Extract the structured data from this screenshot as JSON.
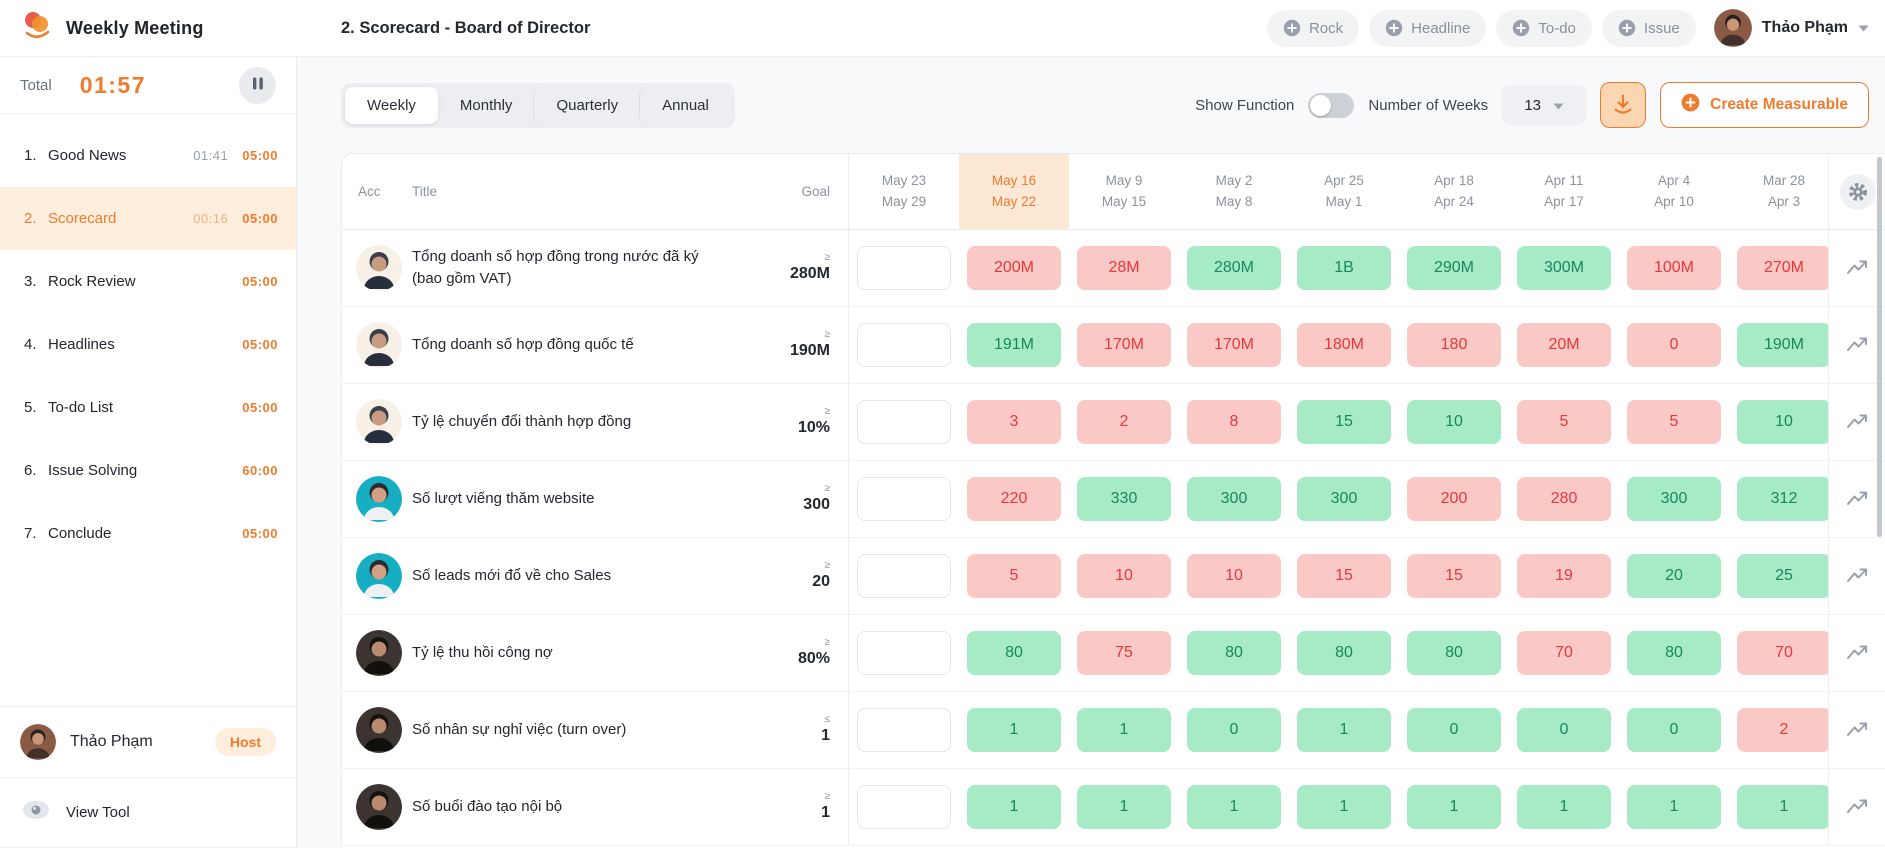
{
  "app": {
    "title": "Weekly Meeting"
  },
  "header": {
    "page_title": "2. Scorecard - Board of Director",
    "quick_add": [
      {
        "label": "Rock"
      },
      {
        "label": "Headline"
      },
      {
        "label": "To-do"
      },
      {
        "label": "Issue"
      }
    ],
    "user": {
      "name": "Thảo Phạm"
    }
  },
  "sidebar": {
    "total_label": "Total",
    "total_time": "01:57",
    "items": [
      {
        "num": "1.",
        "label": "Good News",
        "elapsed": "01:41",
        "time": "05:00",
        "active": false
      },
      {
        "num": "2.",
        "label": "Scorecard",
        "elapsed": "00:16",
        "time": "05:00",
        "active": true
      },
      {
        "num": "3.",
        "label": "Rock Review",
        "elapsed": "",
        "time": "05:00",
        "active": false
      },
      {
        "num": "4.",
        "label": "Headlines",
        "elapsed": "",
        "time": "05:00",
        "active": false
      },
      {
        "num": "5.",
        "label": "To-do List",
        "elapsed": "",
        "time": "05:00",
        "active": false
      },
      {
        "num": "6.",
        "label": "Issue Solving",
        "elapsed": "",
        "time": "60:00",
        "active": false
      },
      {
        "num": "7.",
        "label": "Conclude",
        "elapsed": "",
        "time": "05:00",
        "active": false
      }
    ],
    "host": {
      "name": "Thảo Phạm",
      "badge": "Host"
    },
    "view_tool": "View Tool"
  },
  "toolbar": {
    "tabs": [
      {
        "label": "Weekly",
        "active": true
      },
      {
        "label": "Monthly",
        "active": false
      },
      {
        "label": "Quarterly",
        "active": false
      },
      {
        "label": "Annual",
        "active": false
      }
    ],
    "show_function_label": "Show Function",
    "show_function_on": false,
    "weeks_label": "Number of Weeks",
    "weeks_value": "13",
    "create_label": "Create Measurable"
  },
  "table": {
    "columns": {
      "acc": "Acc",
      "title": "Title",
      "goal": "Goal"
    },
    "weeks": [
      {
        "top": "May 23",
        "bottom": "May 29",
        "current": false
      },
      {
        "top": "May 16",
        "bottom": "May 22",
        "current": true
      },
      {
        "top": "May 9",
        "bottom": "May 15",
        "current": false
      },
      {
        "top": "May 2",
        "bottom": "May 8",
        "current": false
      },
      {
        "top": "Apr 25",
        "bottom": "May 1",
        "current": false
      },
      {
        "top": "Apr 18",
        "bottom": "Apr 24",
        "current": false
      },
      {
        "top": "Apr 11",
        "bottom": "Apr 17",
        "current": false
      },
      {
        "top": "Apr 4",
        "bottom": "Apr 10",
        "current": false
      },
      {
        "top": "Mar 28",
        "bottom": "Apr 3",
        "current": false
      }
    ],
    "rows": [
      {
        "avatar": "man-suit",
        "title": "Tổng doanh số hợp đồng trong nước đã ký (bao gồm VAT)",
        "goal": {
          "op": "≥",
          "value": "280M"
        },
        "input_value": "",
        "values": [
          {
            "v": "200M",
            "status": "bad"
          },
          {
            "v": "28M",
            "status": "bad"
          },
          {
            "v": "280M",
            "status": "good"
          },
          {
            "v": "1B",
            "status": "good"
          },
          {
            "v": "290M",
            "status": "good"
          },
          {
            "v": "300M",
            "status": "good"
          },
          {
            "v": "100M",
            "status": "bad"
          },
          {
            "v": "270M",
            "status": "bad"
          }
        ]
      },
      {
        "avatar": "man-suit",
        "title": "Tổng doanh số hợp đồng quốc tế",
        "goal": {
          "op": "≥",
          "value": "190M"
        },
        "input_value": "",
        "values": [
          {
            "v": "191M",
            "status": "good"
          },
          {
            "v": "170M",
            "status": "bad"
          },
          {
            "v": "170M",
            "status": "bad"
          },
          {
            "v": "180M",
            "status": "bad"
          },
          {
            "v": "180",
            "status": "bad"
          },
          {
            "v": "20M",
            "status": "bad"
          },
          {
            "v": "0",
            "status": "bad"
          },
          {
            "v": "190M",
            "status": "good"
          }
        ]
      },
      {
        "avatar": "man-suit",
        "title": "Tỷ lệ chuyển đổi thành hợp đồng",
        "goal": {
          "op": "≥",
          "value": "10%"
        },
        "input_value": "",
        "values": [
          {
            "v": "3",
            "status": "bad"
          },
          {
            "v": "2",
            "status": "bad"
          },
          {
            "v": "8",
            "status": "bad"
          },
          {
            "v": "15",
            "status": "good"
          },
          {
            "v": "10",
            "status": "good"
          },
          {
            "v": "5",
            "status": "bad"
          },
          {
            "v": "5",
            "status": "bad"
          },
          {
            "v": "10",
            "status": "good"
          }
        ]
      },
      {
        "avatar": "woman-teal",
        "title": "Số lượt viếng thăm website",
        "goal": {
          "op": "≥",
          "value": "300"
        },
        "input_value": "",
        "values": [
          {
            "v": "220",
            "status": "bad"
          },
          {
            "v": "330",
            "status": "good"
          },
          {
            "v": "300",
            "status": "good"
          },
          {
            "v": "300",
            "status": "good"
          },
          {
            "v": "200",
            "status": "bad"
          },
          {
            "v": "280",
            "status": "bad"
          },
          {
            "v": "300",
            "status": "good"
          },
          {
            "v": "312",
            "status": "good"
          }
        ]
      },
      {
        "avatar": "woman-teal",
        "title": "Số leads mới đổ về cho Sales",
        "goal": {
          "op": "≥",
          "value": "20"
        },
        "input_value": "",
        "values": [
          {
            "v": "5",
            "status": "bad"
          },
          {
            "v": "10",
            "status": "bad"
          },
          {
            "v": "10",
            "status": "bad"
          },
          {
            "v": "15",
            "status": "bad"
          },
          {
            "v": "15",
            "status": "bad"
          },
          {
            "v": "19",
            "status": "bad"
          },
          {
            "v": "20",
            "status": "good"
          },
          {
            "v": "25",
            "status": "good"
          }
        ]
      },
      {
        "avatar": "woman-dark",
        "title": "Tỷ lệ thu hồi công nợ",
        "goal": {
          "op": "≥",
          "value": "80%"
        },
        "input_value": "",
        "values": [
          {
            "v": "80",
            "status": "good"
          },
          {
            "v": "75",
            "status": "bad"
          },
          {
            "v": "80",
            "status": "good"
          },
          {
            "v": "80",
            "status": "good"
          },
          {
            "v": "80",
            "status": "good"
          },
          {
            "v": "70",
            "status": "bad"
          },
          {
            "v": "80",
            "status": "good"
          },
          {
            "v": "70",
            "status": "bad"
          }
        ]
      },
      {
        "avatar": "woman-dark",
        "title": "Số nhân sự nghỉ việc (turn over)",
        "goal": {
          "op": "≤",
          "value": "1"
        },
        "input_value": "",
        "values": [
          {
            "v": "1",
            "status": "good"
          },
          {
            "v": "1",
            "status": "good"
          },
          {
            "v": "0",
            "status": "good"
          },
          {
            "v": "1",
            "status": "good"
          },
          {
            "v": "0",
            "status": "good"
          },
          {
            "v": "0",
            "status": "good"
          },
          {
            "v": "0",
            "status": "good"
          },
          {
            "v": "2",
            "status": "bad"
          }
        ]
      },
      {
        "avatar": "woman-dark",
        "title": "Số buổi đào tạo nội bộ",
        "goal": {
          "op": "≥",
          "value": "1"
        },
        "input_value": "",
        "values": [
          {
            "v": "1",
            "status": "good"
          },
          {
            "v": "1",
            "status": "good"
          },
          {
            "v": "1",
            "status": "good"
          },
          {
            "v": "1",
            "status": "good"
          },
          {
            "v": "1",
            "status": "good"
          },
          {
            "v": "1",
            "status": "good"
          },
          {
            "v": "1",
            "status": "good"
          },
          {
            "v": "1",
            "status": "good"
          }
        ]
      }
    ]
  },
  "colors": {
    "accent_orange": "#ef7b2e",
    "active_item_bg": "#fdeedd",
    "current_week_bg": "#fce8d5",
    "good_bg": "#a6ebc5",
    "good_text": "#17885c",
    "bad_bg": "#fbc9c5",
    "bad_text": "#e5383d"
  }
}
